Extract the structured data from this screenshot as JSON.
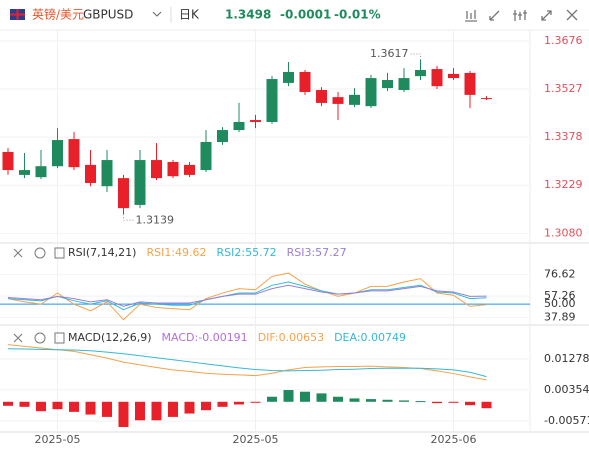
{
  "header": {
    "name": "英镑/美元",
    "code": "GBPUSD",
    "period": "日K",
    "price": "1.3498",
    "change": "-0.0001",
    "change_pct": "-0.01%"
  },
  "chart_data": [
    {
      "type": "candlestick",
      "up_color": "#1f8a5e",
      "down_color": "#e8202a",
      "tick_color": "#e0505a",
      "grid": true,
      "open": [
        1.3332,
        1.3261,
        1.3254,
        1.3288,
        1.3372,
        1.3292,
        1.3226,
        1.3251,
        1.3168,
        1.3307,
        1.3301,
        1.3292,
        1.3276,
        1.3363,
        1.34,
        1.3431,
        1.3425,
        1.3546,
        1.358,
        1.3524,
        1.3502,
        1.3478,
        1.3474,
        1.353,
        1.3524,
        1.3567,
        1.3589,
        1.3574,
        1.3577,
        1.3499
      ],
      "high": [
        1.3344,
        1.3329,
        1.3338,
        1.3406,
        1.3394,
        1.3338,
        1.3338,
        1.3261,
        1.3338,
        1.336,
        1.3307,
        1.3301,
        1.34,
        1.3409,
        1.3484,
        1.3447,
        1.3567,
        1.3611,
        1.3586,
        1.3533,
        1.3518,
        1.353,
        1.3571,
        1.3577,
        1.3592,
        1.3617,
        1.3599,
        1.3592,
        1.3583,
        1.3505
      ],
      "low": [
        1.3261,
        1.3251,
        1.3248,
        1.3282,
        1.3276,
        1.3226,
        1.3208,
        1.3139,
        1.3158,
        1.3245,
        1.3251,
        1.3254,
        1.327,
        1.3354,
        1.3394,
        1.3406,
        1.3419,
        1.3536,
        1.3509,
        1.3474,
        1.3431,
        1.3471,
        1.3468,
        1.3521,
        1.3518,
        1.3555,
        1.3527,
        1.3555,
        1.3468,
        1.3493
      ],
      "close": [
        1.3276,
        1.3276,
        1.3288,
        1.3369,
        1.3285,
        1.3236,
        1.3307,
        1.3158,
        1.3307,
        1.3251,
        1.3257,
        1.3261,
        1.3363,
        1.34,
        1.3425,
        1.3425,
        1.3558,
        1.358,
        1.3518,
        1.3484,
        1.3481,
        1.3509,
        1.3561,
        1.3555,
        1.3561,
        1.3586,
        1.3536,
        1.3561,
        1.3509,
        1.3498
      ],
      "ylim": [
        1.305,
        1.371
      ],
      "yticks": [
        1.3676,
        1.3527,
        1.3378,
        1.3229,
        {
          "value": 1.308,
          "label": "1.3080"
        }
      ]
    },
    {
      "type": "line",
      "title": "RSI(7,14,21)",
      "tick_color": "#333333",
      "grid": true,
      "hline": {
        "value": 50,
        "color": "#2196f3"
      },
      "ylim": [
        33,
        88
      ],
      "yticks": [
        76.62,
        57.26,
        {
          "value": 50,
          "label": "50.00"
        },
        37.89
      ],
      "series": [
        {
          "name": "RSI1:49.62",
          "color": "#f7a24b",
          "values": [
            55,
            52,
            50,
            60,
            50,
            44,
            52,
            36,
            50,
            47,
            46,
            45,
            55,
            60,
            64,
            63,
            75,
            78,
            68,
            62,
            57,
            60,
            66,
            66,
            70,
            73,
            60,
            58,
            48,
            49.62
          ]
        },
        {
          "name": "RSI2:55.72",
          "color": "#36b8d6",
          "values": [
            55,
            54,
            53,
            57,
            53,
            50,
            53,
            45,
            51,
            50,
            49,
            49,
            54,
            57,
            60,
            60,
            67,
            70,
            66,
            62,
            59,
            60,
            63,
            63,
            65,
            67,
            61,
            60,
            55,
            55.72
          ]
        },
        {
          "name": "RSI3:57.27",
          "color": "#9a7fd1",
          "values": [
            56,
            55,
            54,
            57,
            55,
            52,
            54,
            48,
            52,
            51,
            51,
            51,
            54,
            57,
            59,
            59,
            64,
            67,
            64,
            61,
            59,
            60,
            62,
            62,
            64,
            66,
            62,
            61,
            57,
            57.27
          ]
        }
      ]
    },
    {
      "type": "macd",
      "title": "MACD(12,26,9)",
      "tick_color": "#333333",
      "grid": true,
      "up_color": "#1f8a5e",
      "down_color": "#e8202a",
      "categories": [
        null,
        null,
        null,
        "2025-05",
        null,
        null,
        null,
        null,
        null,
        null,
        null,
        null,
        null,
        null,
        null,
        "2025-05",
        null,
        null,
        null,
        null,
        null,
        null,
        null,
        null,
        null,
        null,
        null,
        "2025-06",
        null,
        null
      ],
      "ylim": [
        -0.0084,
        0.0175
      ],
      "yticks": [
        0.01278,
        0.00354,
        -0.00571
      ],
      "series": [
        {
          "name": "MACD:-0.00191",
          "kind": "bar",
          "color": "#b36fd6",
          "values": [
            -0.0012,
            -0.0015,
            -0.0028,
            -0.0022,
            -0.003,
            -0.0038,
            -0.0045,
            -0.0075,
            -0.0055,
            -0.0055,
            -0.0045,
            -0.0035,
            -0.0025,
            -0.0015,
            -0.0008,
            -0.0003,
            0.0015,
            0.0035,
            0.003,
            0.0025,
            0.0015,
            0.001,
            0.0008,
            0.0006,
            0.0004,
            0.0002,
            -0.0004,
            -0.0003,
            -0.001,
            -0.00191
          ]
        },
        {
          "name": "DIF:0.00653",
          "kind": "line",
          "color": "#f7a24b",
          "values": [
            0.017,
            0.0165,
            0.016,
            0.0155,
            0.015,
            0.014,
            0.013,
            0.0118,
            0.011,
            0.0102,
            0.0095,
            0.009,
            0.0085,
            0.0082,
            0.008,
            0.0078,
            0.0085,
            0.0095,
            0.0102,
            0.0104,
            0.0105,
            0.0105,
            0.0106,
            0.0104,
            0.0102,
            0.0099,
            0.0092,
            0.0084,
            0.0074,
            0.00653
          ]
        },
        {
          "name": "DEA:0.00749",
          "kind": "line",
          "color": "#36b8d6",
          "values": [
            0.0158,
            0.0157,
            0.0156,
            0.0155,
            0.0154,
            0.0152,
            0.0148,
            0.0143,
            0.0137,
            0.0131,
            0.0125,
            0.0119,
            0.0113,
            0.0107,
            0.0101,
            0.0096,
            0.0093,
            0.0092,
            0.0093,
            0.0094,
            0.0096,
            0.0097,
            0.0099,
            0.01,
            0.01,
            0.01,
            0.0098,
            0.0095,
            0.0088,
            0.00749
          ]
        }
      ]
    }
  ]
}
